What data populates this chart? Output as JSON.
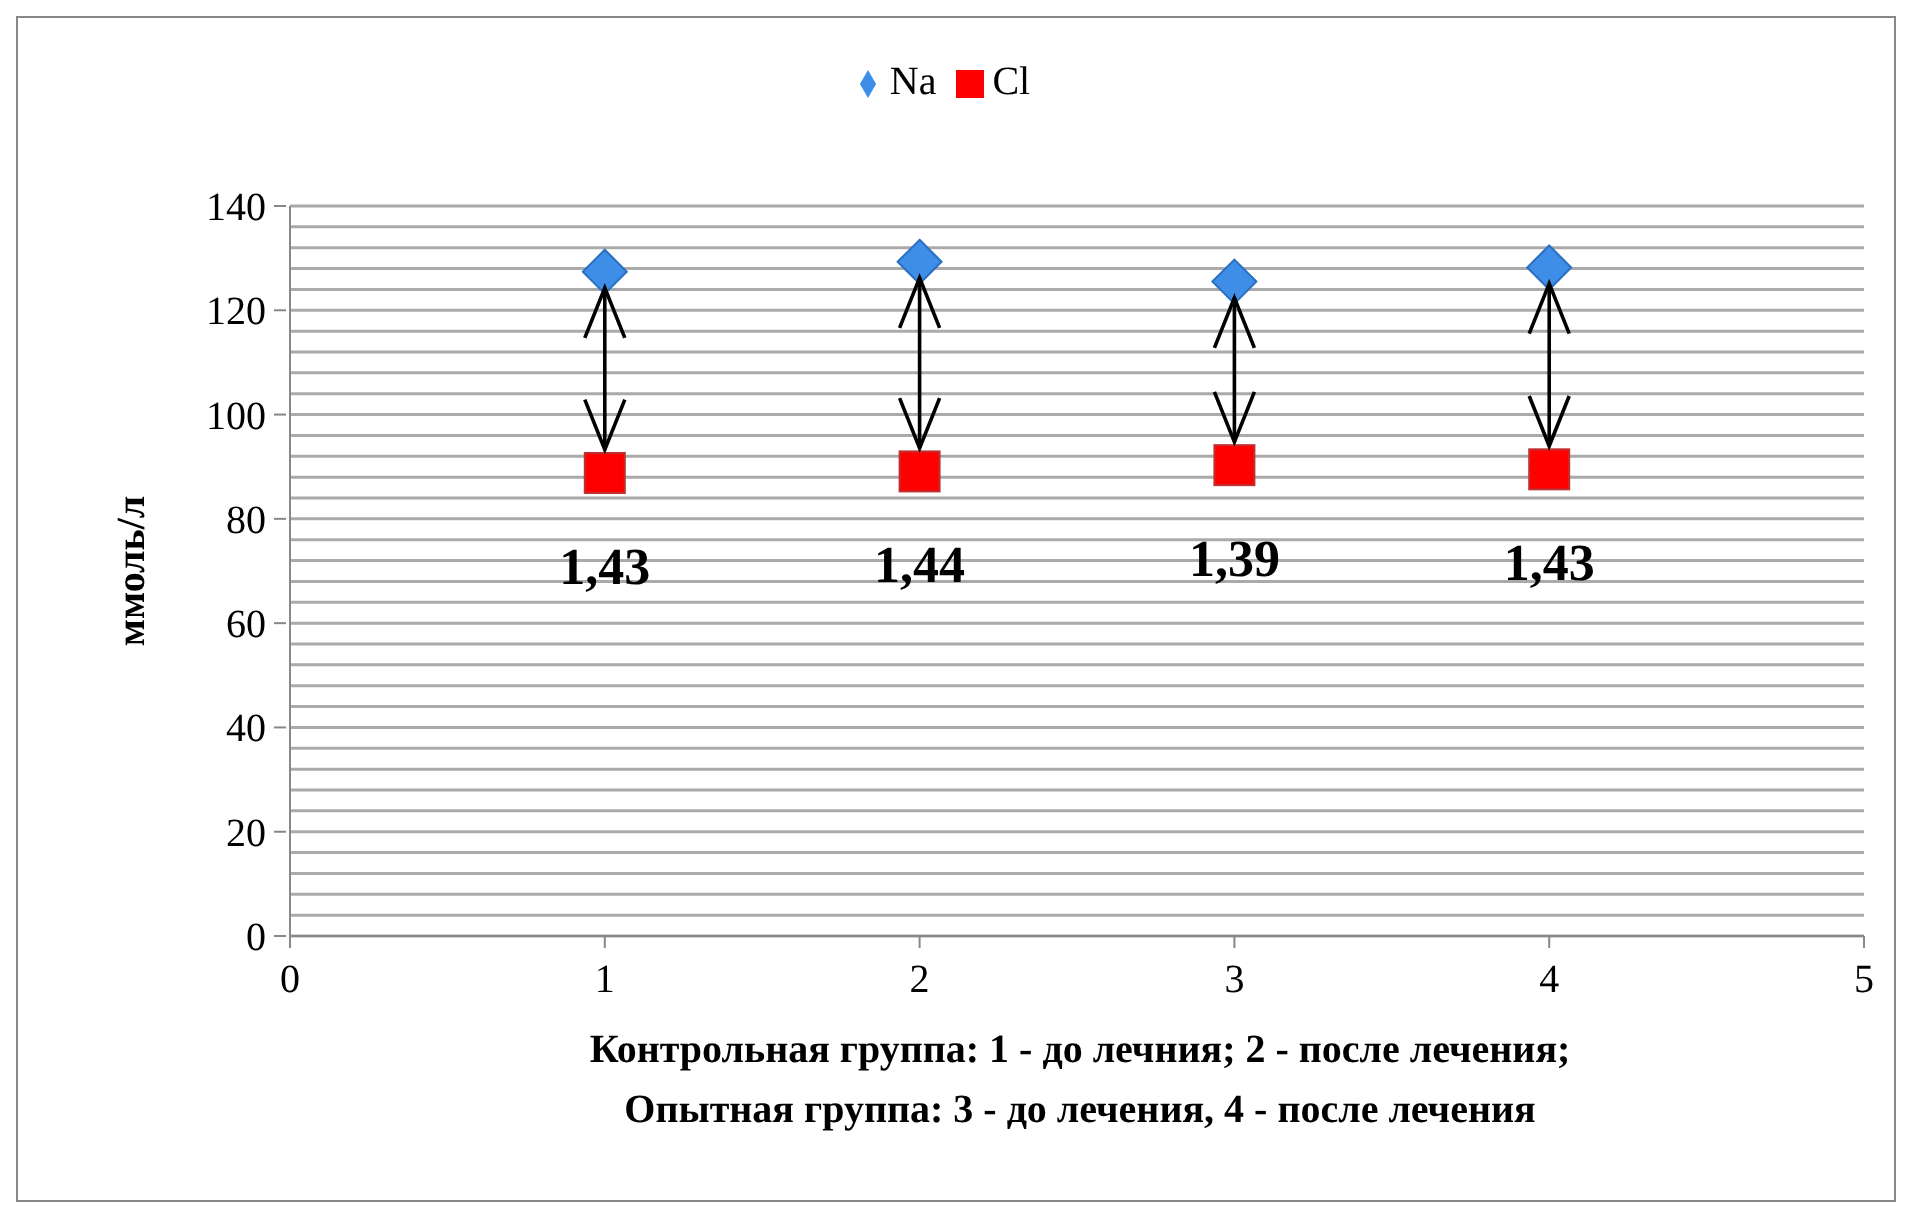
{
  "chart_data": {
    "type": "scatter",
    "xlabel": "Контрольная группа: 1 - до лечния; 2 - после лечения;\nОпытная группа: 3 - до лечения, 4 - после лечения",
    "ylabel": "ммоль/л",
    "x": [
      1,
      2,
      3,
      4
    ],
    "series": [
      {
        "name": "Na",
        "color": "#3e8ee8",
        "marker": "diamond",
        "values": [
          127.4,
          129.3,
          125.5,
          128.2
        ]
      },
      {
        "name": "Cl",
        "color": "#ff0000",
        "marker": "square",
        "values": [
          88.8,
          89.1,
          90.3,
          89.5
        ]
      }
    ],
    "annotations": [
      "1,43",
      "1,44",
      "1,39",
      "1,43"
    ],
    "xlim": [
      0,
      5
    ],
    "xticks": [
      0,
      1,
      2,
      3,
      4,
      5
    ],
    "ylim": [
      0,
      140
    ],
    "yticks": [
      0,
      {
        "value": 4,
        "label": null
      },
      {
        "value": 8,
        "label": null
      },
      {
        "value": 12,
        "label": null
      },
      {
        "value": 16,
        "label": null
      },
      20,
      {
        "value": 24,
        "label": null
      },
      {
        "value": 28,
        "label": null
      },
      {
        "value": 32,
        "label": null
      },
      {
        "value": 36,
        "label": null
      },
      40,
      {
        "value": 44,
        "label": null
      },
      {
        "value": 48,
        "label": null
      },
      {
        "value": 52,
        "label": null
      },
      {
        "value": 56,
        "label": null
      },
      60,
      {
        "value": 64,
        "label": null
      },
      {
        "value": 68,
        "label": null
      },
      {
        "value": 72,
        "label": null
      },
      {
        "value": 76,
        "label": null
      },
      80,
      {
        "value": 84,
        "label": null
      },
      {
        "value": 88,
        "label": null
      },
      {
        "value": 92,
        "label": null
      },
      {
        "value": 96,
        "label": null
      },
      100,
      {
        "value": 104,
        "label": null
      },
      {
        "value": 108,
        "label": null
      },
      {
        "value": 112,
        "label": null
      },
      {
        "value": 116,
        "label": null
      },
      120,
      {
        "value": 124,
        "label": null
      },
      {
        "value": 128,
        "label": null
      },
      {
        "value": 132,
        "label": null
      },
      {
        "value": 136,
        "label": null
      },
      140
    ],
    "grid": "y",
    "legend": "top"
  }
}
